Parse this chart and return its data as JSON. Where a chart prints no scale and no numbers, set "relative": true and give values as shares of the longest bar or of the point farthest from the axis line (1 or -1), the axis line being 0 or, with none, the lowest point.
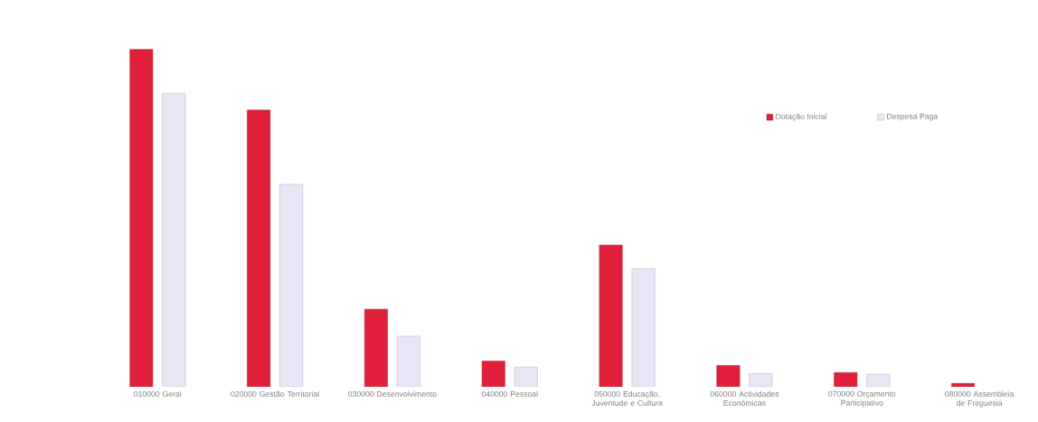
{
  "chart_data": {
    "type": "bar",
    "relative": true,
    "categories": [
      "010000 Geral",
      "020000 Gestão Territorial",
      "030000 Desenvolvimento",
      "040000 Pessoal",
      "050000 Educação, Juventude e Cultura",
      "060000 Actividades Económicas",
      "070000 Orçamento Participativo",
      "080000 Assembleia de Freguesia"
    ],
    "series": [
      {
        "name": "Dotação Inicial",
        "color": "#e0203a",
        "values": [
          1,
          0.82,
          0.23,
          0.076,
          0.42,
          0.063,
          0.042,
          0.01
        ]
      },
      {
        "name": "Despesa Paga",
        "color": "#e6e6f4",
        "values": [
          0.87,
          0.6,
          0.15,
          0.058,
          0.35,
          0.039,
          0.037,
          null
        ]
      }
    ],
    "legend": "top right"
  }
}
